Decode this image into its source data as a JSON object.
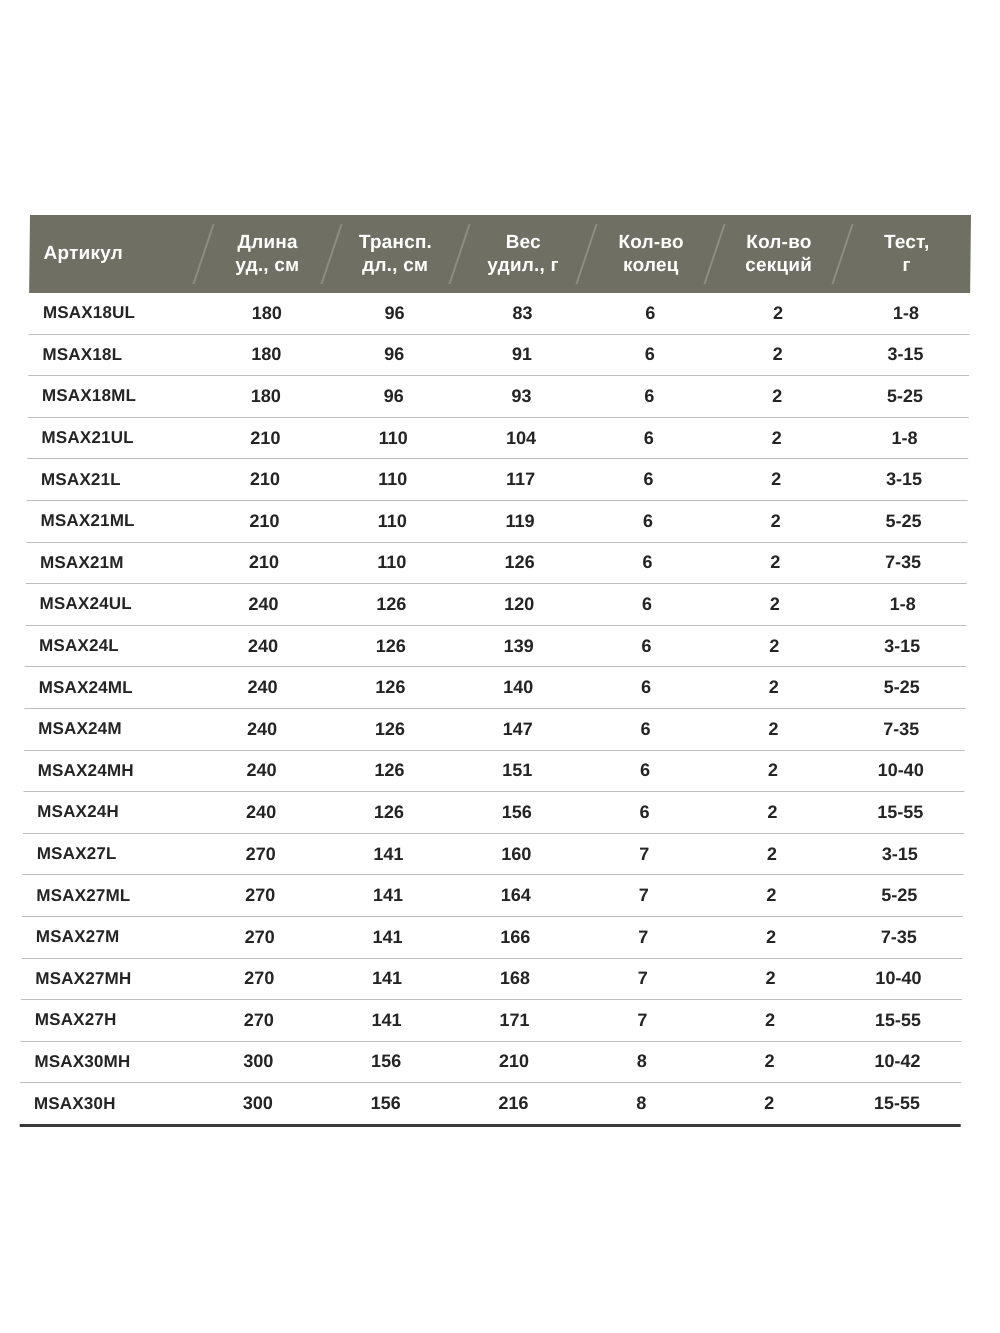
{
  "chart_data": {
    "type": "table",
    "title": "",
    "columns": [
      {
        "label": "Артикул"
      },
      {
        "label": "Длина\nуд., см"
      },
      {
        "label": "Трансп.\nдл., см"
      },
      {
        "label": "Вес\nудил.,  г"
      },
      {
        "label": "Кол-во\nколец"
      },
      {
        "label": "Кол-во\nсекций"
      },
      {
        "label": "Тест,\nг"
      }
    ],
    "rows": [
      [
        "MSAX18UL",
        "180",
        "96",
        "83",
        "6",
        "2",
        "1-8"
      ],
      [
        "MSAX18L",
        "180",
        "96",
        "91",
        "6",
        "2",
        "3-15"
      ],
      [
        "MSAX18ML",
        "180",
        "96",
        "93",
        "6",
        "2",
        "5-25"
      ],
      [
        "MSAX21UL",
        "210",
        "110",
        "104",
        "6",
        "2",
        "1-8"
      ],
      [
        "MSAX21L",
        "210",
        "110",
        "117",
        "6",
        "2",
        "3-15"
      ],
      [
        "MSAX21ML",
        "210",
        "110",
        "119",
        "6",
        "2",
        "5-25"
      ],
      [
        "MSAX21M",
        "210",
        "110",
        "126",
        "6",
        "2",
        "7-35"
      ],
      [
        "MSAX24UL",
        "240",
        "126",
        "120",
        "6",
        "2",
        "1-8"
      ],
      [
        "MSAX24L",
        "240",
        "126",
        "139",
        "6",
        "2",
        "3-15"
      ],
      [
        "MSAX24ML",
        "240",
        "126",
        "140",
        "6",
        "2",
        "5-25"
      ],
      [
        "MSAX24M",
        "240",
        "126",
        "147",
        "6",
        "2",
        "7-35"
      ],
      [
        "MSAX24MH",
        "240",
        "126",
        "151",
        "6",
        "2",
        "10-40"
      ],
      [
        "MSAX24H",
        "240",
        "126",
        "156",
        "6",
        "2",
        "15-55"
      ],
      [
        "MSAX27L",
        "270",
        "141",
        "160",
        "7",
        "2",
        "3-15"
      ],
      [
        "MSAX27ML",
        "270",
        "141",
        "164",
        "7",
        "2",
        "5-25"
      ],
      [
        "MSAX27M",
        "270",
        "141",
        "166",
        "7",
        "2",
        "7-35"
      ],
      [
        "MSAX27MH",
        "270",
        "141",
        "168",
        "7",
        "2",
        "10-40"
      ],
      [
        "MSAX27H",
        "270",
        "141",
        "171",
        "7",
        "2",
        "15-55"
      ],
      [
        "MSAX30MH",
        "300",
        "156",
        "210",
        "8",
        "2",
        "10-42"
      ],
      [
        "MSAX30H",
        "300",
        "156",
        "216",
        "8",
        "2",
        "15-55"
      ]
    ]
  },
  "colors": {
    "header_bg": "#6f6f63",
    "header_text": "#ffffff",
    "text": "#242424",
    "row_border": "#bdbdbd",
    "bottom_border": "#3a3a3a",
    "page_bg": "#ffffff"
  }
}
